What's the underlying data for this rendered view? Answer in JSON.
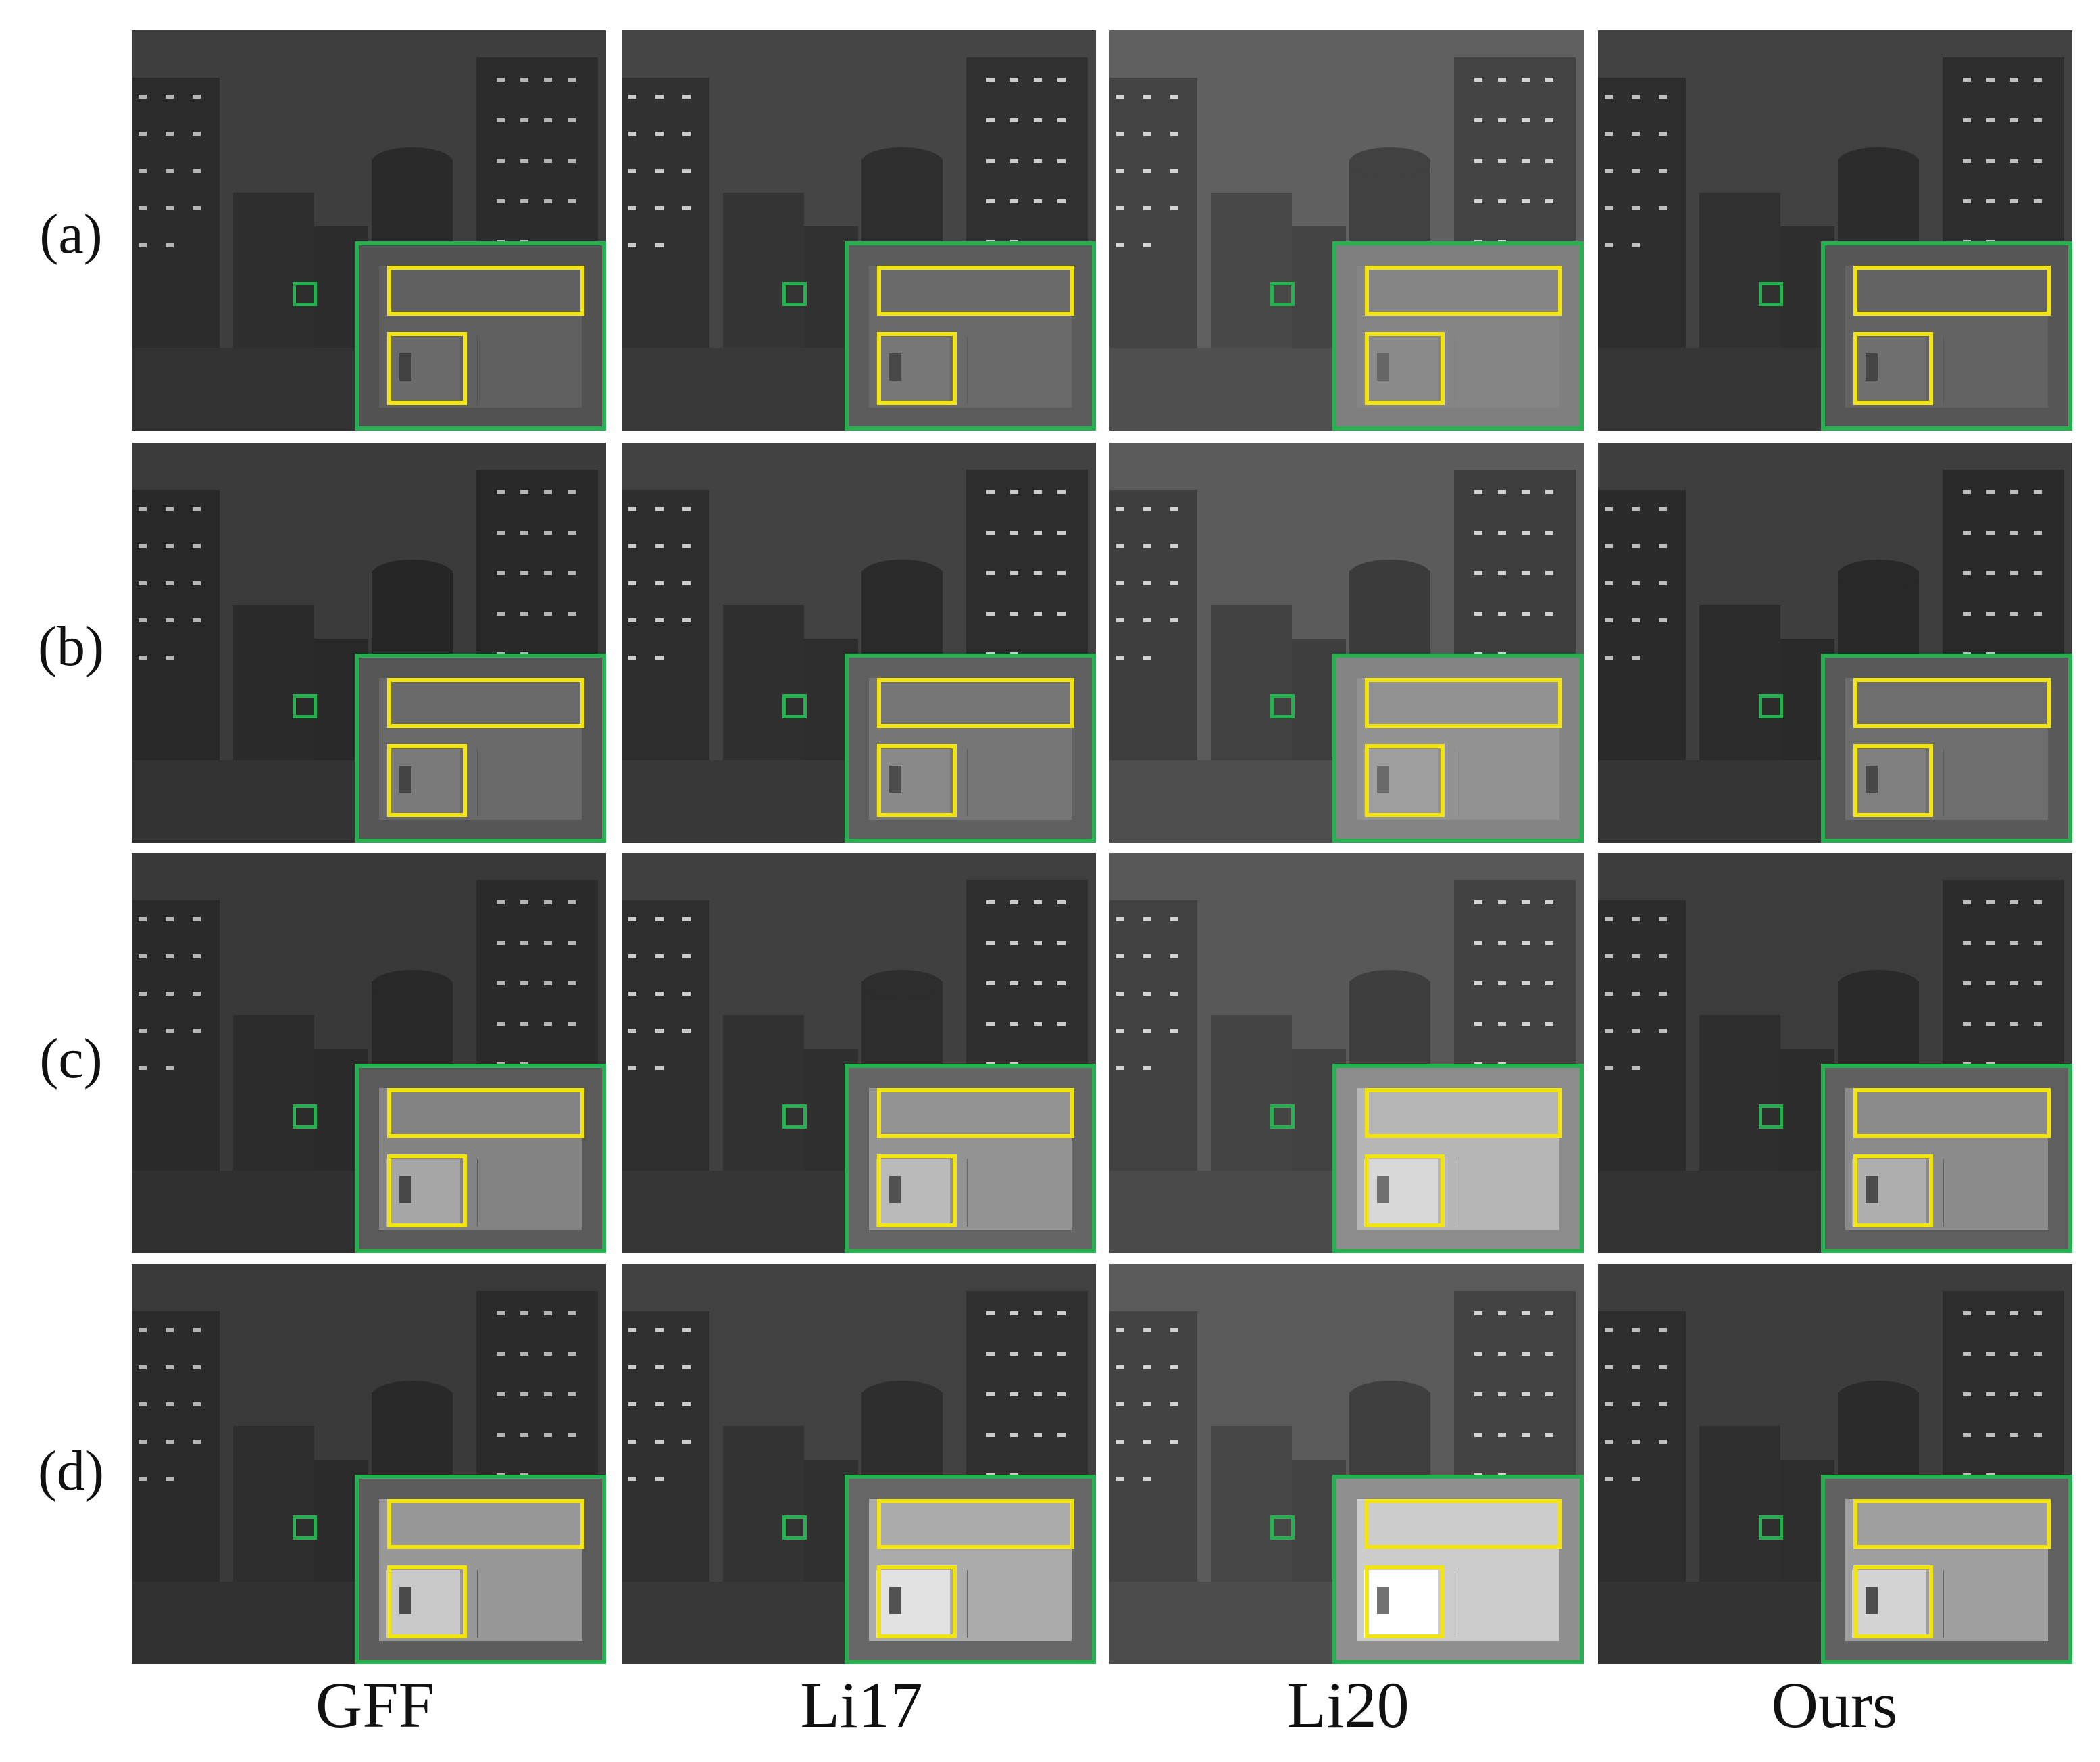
{
  "rows": [
    {
      "label": "(a)",
      "tones": {
        "sky": "#3e3e3e",
        "bldg": "#2c2c2c",
        "ground": "#333333",
        "inset_bg": "#525252",
        "inset_win": "#6a6a6a"
      }
    },
    {
      "label": "(b)",
      "tones": {
        "sky": "#3b3b3b",
        "bldg": "#282828",
        "ground": "#323232",
        "inset_bg": "#555555",
        "inset_win": "#7a7a7a"
      }
    },
    {
      "label": "(c)",
      "tones": {
        "sky": "#393939",
        "bldg": "#2a2a2a",
        "ground": "#303030",
        "inset_bg": "#5a5a5a",
        "inset_win": "#a6a6a6"
      }
    },
    {
      "label": "(d)",
      "tones": {
        "sky": "#3a3a3a",
        "bldg": "#2b2b2b",
        "ground": "#313131",
        "inset_bg": "#5c5c5c",
        "inset_win": "#c9c9c9"
      }
    }
  ],
  "columns": [
    {
      "label": "GFF",
      "brightness": 1.0
    },
    {
      "label": "Li17",
      "brightness": 1.12
    },
    {
      "label": "Li20",
      "brightness": 1.55
    },
    {
      "label": "Ours",
      "brightness": 1.05
    }
  ],
  "colors": {
    "highlight_box": "#27b04f",
    "detail_box": "#f2e413"
  }
}
